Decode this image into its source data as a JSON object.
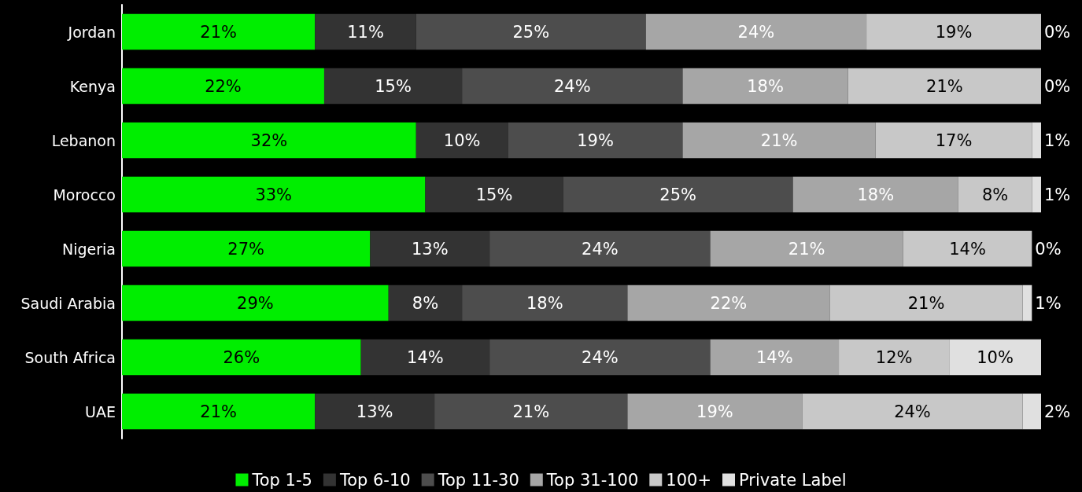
{
  "chart_data": {
    "type": "bar",
    "orientation": "horizontal",
    "stacked": true,
    "legend": "bottom",
    "grid": false,
    "tick_labels": "y",
    "xlim": [
      0,
      100
    ],
    "categories": [
      "Jordan",
      "Kenya",
      "Lebanon",
      "Morocco",
      "Nigeria",
      "Saudi Arabia",
      "South Africa",
      "UAE"
    ],
    "series": [
      {
        "name": "Top 1-5",
        "color": "#00ee00",
        "values": [
          21,
          22,
          32,
          33,
          27,
          29,
          26,
          21
        ],
        "value_labels": [
          "21%",
          "22%",
          "32%",
          "33%",
          "27%",
          "29%",
          "26%",
          "21%"
        ]
      },
      {
        "name": "Top 6-10",
        "color": "#333333",
        "values": [
          11,
          15,
          10,
          15,
          13,
          8,
          14,
          13
        ],
        "value_labels": [
          "11%",
          "15%",
          "10%",
          "15%",
          "13%",
          "8%",
          "14%",
          "13%"
        ]
      },
      {
        "name": "Top 11-30",
        "color": "#4d4d4d",
        "values": [
          25,
          24,
          19,
          25,
          24,
          18,
          24,
          21
        ],
        "value_labels": [
          "25%",
          "24%",
          "19%",
          "25%",
          "24%",
          "18%",
          "24%",
          "21%"
        ]
      },
      {
        "name": "Top 31-100",
        "color": "#a6a6a6",
        "values": [
          24,
          18,
          21,
          18,
          21,
          22,
          14,
          19
        ],
        "value_labels": [
          "24%",
          "18%",
          "21%",
          "18%",
          "21%",
          "22%",
          "14%",
          "19%"
        ]
      },
      {
        "name": "100+",
        "color": "#c8c8c8",
        "values": [
          19,
          21,
          17,
          8,
          14,
          21,
          12,
          24
        ],
        "value_labels": [
          "19%",
          "21%",
          "17%",
          "8%",
          "14%",
          "21%",
          "12%",
          "24%"
        ]
      },
      {
        "name": "Private Label",
        "color": "#e0e0e0",
        "values": [
          0,
          0,
          1,
          1,
          0,
          1,
          10,
          2
        ],
        "value_labels": [
          "0%",
          "0%",
          "1%",
          "1%",
          "0%",
          "1%",
          "10%",
          "2%"
        ]
      }
    ]
  }
}
